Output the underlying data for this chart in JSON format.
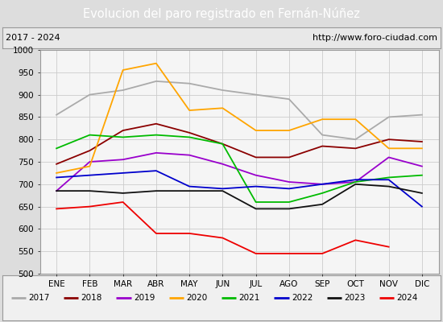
{
  "title": "Evolucion del paro registrado en Fernán-Núñez",
  "subtitle_left": "2017 - 2024",
  "subtitle_right": "http://www.foro-ciudad.com",
  "months": [
    "ENE",
    "FEB",
    "MAR",
    "ABR",
    "MAY",
    "JUN",
    "JUL",
    "AGO",
    "SEP",
    "OCT",
    "NOV",
    "DIC"
  ],
  "ylim": [
    500,
    1000
  ],
  "yticks": [
    500,
    550,
    600,
    650,
    700,
    750,
    800,
    850,
    900,
    950,
    1000
  ],
  "series": {
    "2017": {
      "color": "#aaaaaa",
      "values": [
        855,
        900,
        910,
        930,
        925,
        910,
        900,
        890,
        810,
        800,
        850,
        855
      ]
    },
    "2018": {
      "color": "#8b0000",
      "values": [
        745,
        775,
        820,
        835,
        815,
        790,
        760,
        760,
        785,
        780,
        800,
        795
      ]
    },
    "2019": {
      "color": "#9900cc",
      "values": [
        685,
        750,
        755,
        770,
        765,
        745,
        720,
        705,
        700,
        705,
        760,
        740
      ]
    },
    "2020": {
      "color": "#ffa500",
      "values": [
        725,
        740,
        955,
        970,
        865,
        870,
        820,
        820,
        845,
        845,
        780,
        780
      ]
    },
    "2021": {
      "color": "#00bb00",
      "values": [
        780,
        810,
        805,
        810,
        805,
        790,
        660,
        660,
        680,
        705,
        715,
        720
      ]
    },
    "2022": {
      "color": "#0000cc",
      "values": [
        715,
        720,
        725,
        730,
        695,
        690,
        695,
        690,
        700,
        710,
        710,
        650
      ]
    },
    "2023": {
      "color": "#111111",
      "values": [
        685,
        685,
        680,
        685,
        685,
        685,
        645,
        645,
        655,
        700,
        695,
        680
      ]
    },
    "2024": {
      "color": "#ee0000",
      "values": [
        645,
        650,
        660,
        590,
        590,
        580,
        545,
        545,
        545,
        575,
        560,
        null
      ]
    }
  },
  "title_bg": "#4472c4",
  "title_color": "white",
  "subtitle_bg": "#e8e8e8",
  "subtitle_color": "black",
  "plot_bg": "#f5f5f5",
  "grid_color": "#cccccc",
  "legend_bg": "#f0f0f0"
}
